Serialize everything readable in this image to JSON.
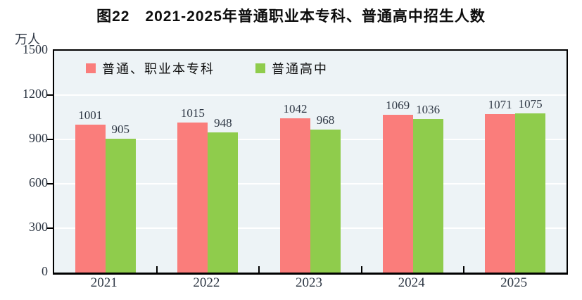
{
  "title": "图22　2021-2025年普通职业本专科、普通高中招生人数",
  "unit_label": "万人",
  "colors": {
    "series1": "#fa7d7b",
    "series2": "#8fcc4c",
    "plot_background": "#edf3f6",
    "gridline": "#ffffff",
    "axis": "#000000",
    "text": "#2e3744"
  },
  "chart_data": {
    "type": "bar",
    "title": "图22　2021-2025年普通职业本专科、普通高中招生人数",
    "categories": [
      "2021",
      "2022",
      "2023",
      "2024",
      "2025"
    ],
    "series": [
      {
        "name": "普通、职业本专科",
        "color": "#fa7d7b",
        "values": [
          1001,
          1015,
          1042,
          1069,
          1071
        ]
      },
      {
        "name": "普通高中",
        "color": "#8fcc4c",
        "values": [
          905,
          948,
          968,
          1036,
          1075
        ]
      }
    ],
    "ylabel": "万人",
    "ylim": [
      0,
      1500
    ],
    "yticks": [
      0,
      300,
      600,
      900,
      1200,
      1500
    ],
    "grid": true,
    "legend_position": "top-inside",
    "value_labels": true
  }
}
